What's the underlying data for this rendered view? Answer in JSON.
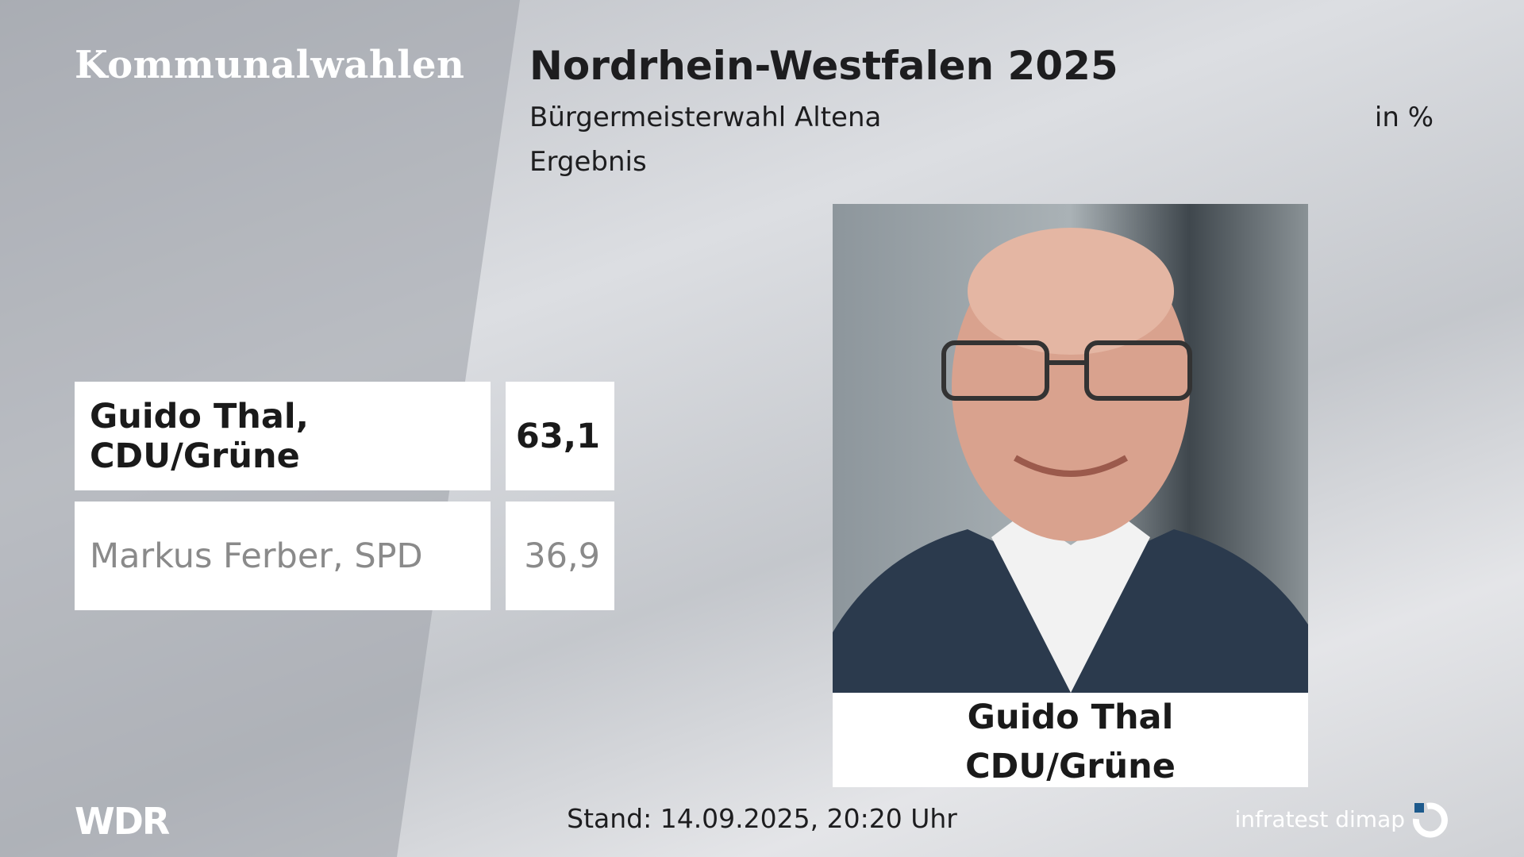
{
  "header": {
    "series_title": "Kommunalwahlen",
    "title": "Nordrhein-Westfalen 2025",
    "subtitle": "Bürgermeisterwahl Altena",
    "unit": "in %",
    "status": "Ergebnis"
  },
  "results": {
    "rows": [
      {
        "label": "Guido Thal, CDU/Grüne",
        "value": "63,1"
      },
      {
        "label": "Markus Ferber, SPD",
        "value": "36,9"
      }
    ]
  },
  "portrait": {
    "name": "Guido Thal",
    "party": "CDU/Grüne"
  },
  "footer": {
    "broadcaster": "WDR",
    "timestamp": "Stand: 14.09.2025, 20:20 Uhr",
    "source": "infratest dimap"
  }
}
